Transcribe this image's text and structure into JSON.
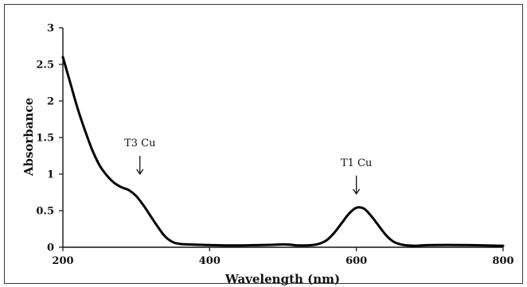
{
  "chart_data": {
    "type": "line",
    "title": "",
    "xlabel": "Wavelength (nm)",
    "ylabel": "Absorbance",
    "xlim": [
      200,
      800
    ],
    "ylim": [
      0,
      3
    ],
    "x_ticks": [
      200,
      400,
      600,
      800
    ],
    "y_ticks": [
      0,
      0.5,
      1,
      1.5,
      2,
      2.5,
      3
    ],
    "y_tick_labels": [
      "0",
      "0.5",
      "1",
      "1.5",
      "2",
      "2.5",
      "3"
    ],
    "grid": false,
    "legend": "none",
    "series": [
      {
        "color": "#000000",
        "x": [
          200,
          210,
          220,
          230,
          240,
          250,
          260,
          270,
          280,
          290,
          300,
          310,
          320,
          330,
          340,
          350,
          360,
          370,
          380,
          400,
          420,
          440,
          460,
          480,
          500,
          510,
          520,
          540,
          550,
          560,
          570,
          580,
          590,
          600,
          610,
          620,
          630,
          640,
          650,
          660,
          670,
          680,
          700,
          750,
          800
        ],
        "y": [
          2.6,
          2.25,
          1.9,
          1.6,
          1.33,
          1.12,
          0.98,
          0.88,
          0.82,
          0.78,
          0.7,
          0.57,
          0.42,
          0.27,
          0.14,
          0.07,
          0.045,
          0.04,
          0.035,
          0.03,
          0.025,
          0.025,
          0.028,
          0.032,
          0.04,
          0.035,
          0.025,
          0.03,
          0.05,
          0.1,
          0.2,
          0.33,
          0.46,
          0.54,
          0.53,
          0.43,
          0.3,
          0.17,
          0.08,
          0.04,
          0.025,
          0.02,
          0.03,
          0.03,
          0.02
        ]
      }
    ],
    "annotations": [
      {
        "text": "T3 Cu",
        "x": 305,
        "arrow_from_y": 1.25,
        "arrow_to_y": 1.0
      },
      {
        "text": "T1 Cu",
        "x": 600,
        "arrow_from_y": 0.98,
        "arrow_to_y": 0.73
      }
    ]
  }
}
